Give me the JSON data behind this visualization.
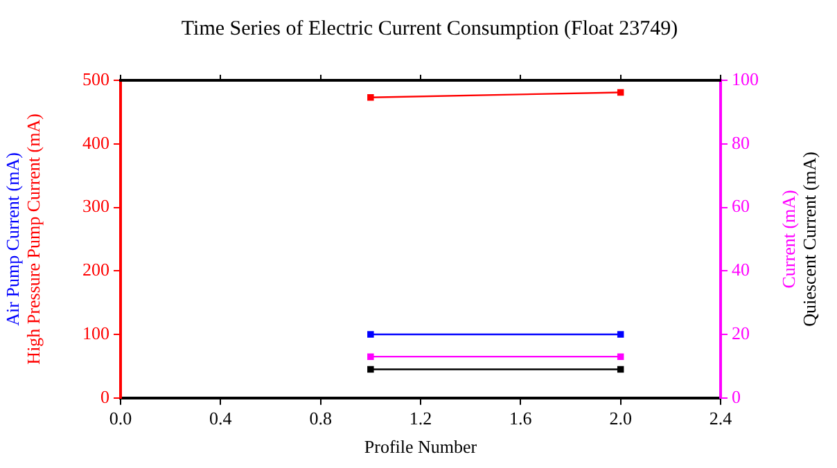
{
  "chart_data": {
    "type": "line",
    "title": "Time Series of Electric Current Consumption (Float 23749)",
    "xlabel": "Profile Number",
    "x": [
      1,
      2
    ],
    "series": [
      {
        "name": "Air Pump Current (mA)",
        "color": "#0000ff",
        "values": [
          100,
          100
        ]
      },
      {
        "name": "High Pressure Pump Current (mA)",
        "color": "#ff0000",
        "values": [
          473,
          481
        ]
      },
      {
        "name": "Current (mA)",
        "color": "#ff00ff",
        "values": [
          13,
          13
        ],
        "axis": "y2"
      },
      {
        "name": "Quiescent Current (mA)",
        "color": "#000000",
        "values": [
          9,
          9
        ],
        "axis": "y2"
      }
    ],
    "xlim": [
      0,
      2.4
    ],
    "xticks": [
      {
        "value": 0,
        "label": "0.0"
      },
      {
        "value": 0.4,
        "label": "0.4"
      },
      {
        "value": 0.8,
        "label": "0.8"
      },
      {
        "value": 1.2,
        "label": "1.2"
      },
      {
        "value": 1.6,
        "label": "1.6"
      },
      {
        "value": 2,
        "label": "2.0"
      },
      {
        "value": 2.4,
        "label": "2.4"
      }
    ],
    "ylim": [
      0,
      500
    ],
    "yticks": [
      0,
      100,
      200,
      300,
      400,
      500
    ],
    "y2lim": [
      0,
      100
    ],
    "y2ticks": [
      0,
      20,
      40,
      60,
      80,
      100
    ],
    "grid": false,
    "legend": false,
    "marker": "square",
    "line_style": "solid"
  }
}
